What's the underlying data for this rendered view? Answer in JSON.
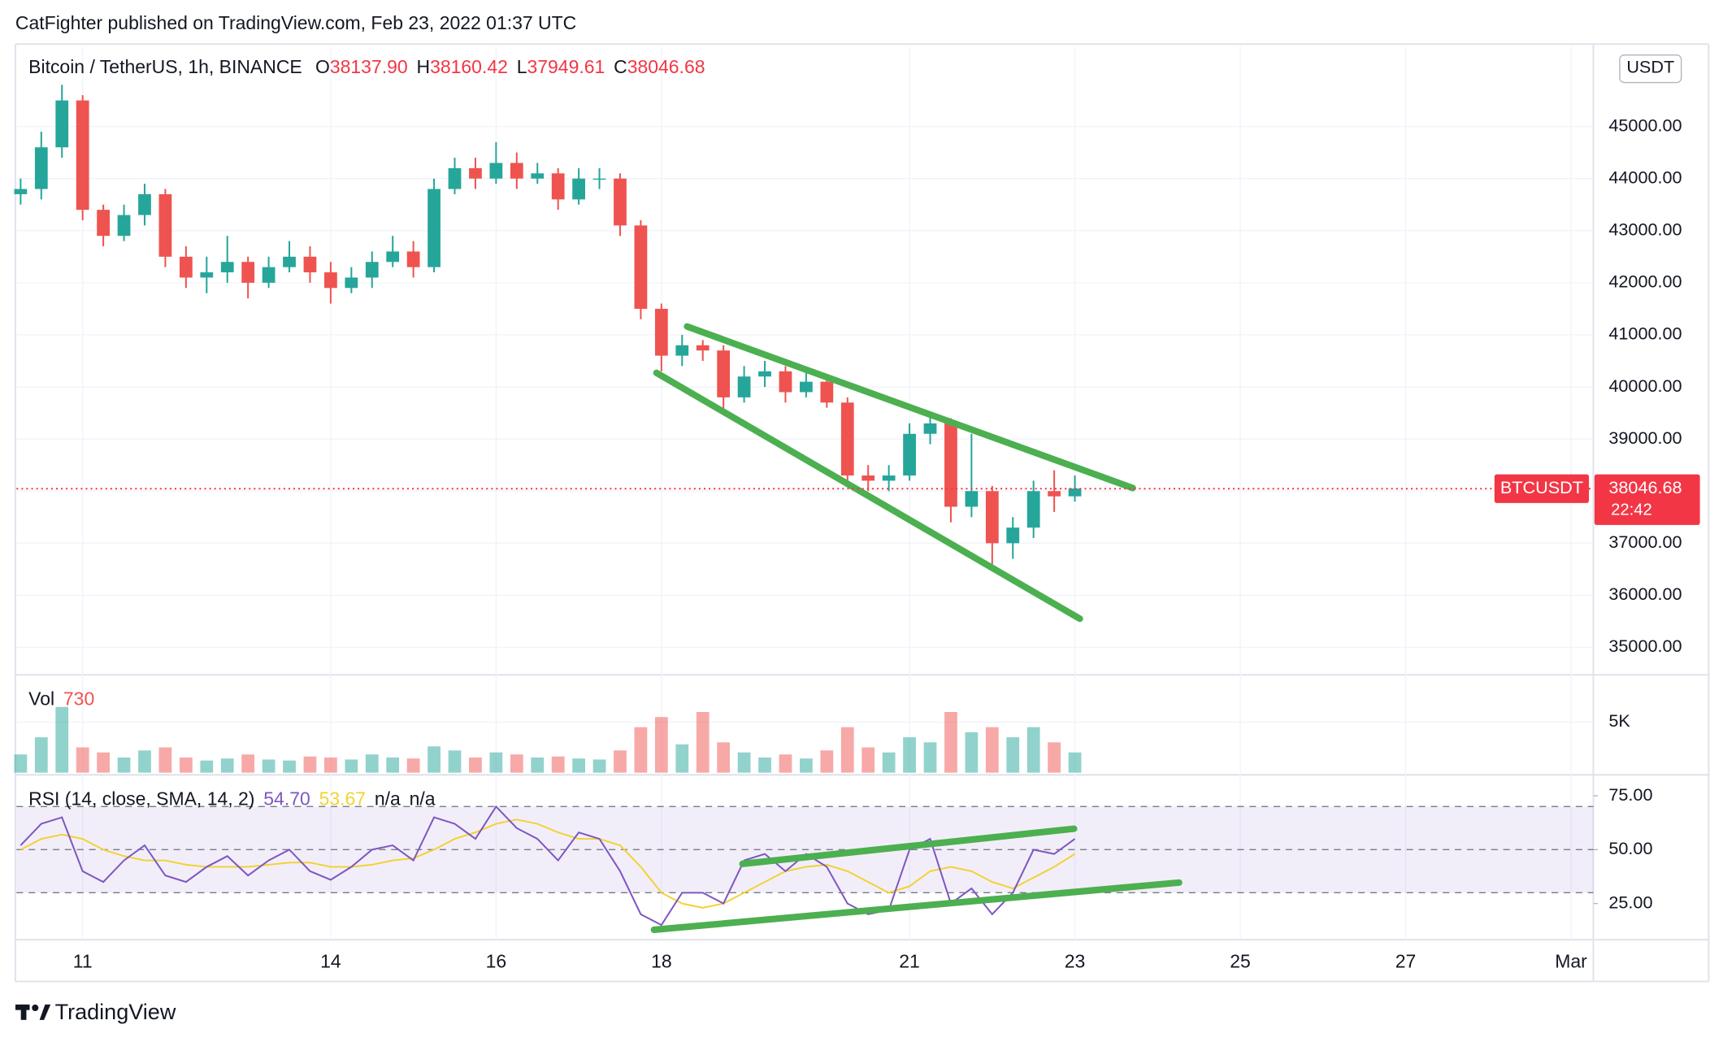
{
  "header": {
    "publisher": "CatFighter published on TradingView.com, Feb 23, 2022 01:37 UTC"
  },
  "chart_data": {
    "type": "candlestick",
    "title": "Bitcoin / TetherUS, 1h, BINANCE",
    "ohlc_labels": [
      {
        "key": "O",
        "value": "38137.90"
      },
      {
        "key": "H",
        "value": "38160.42"
      },
      {
        "key": "L",
        "value": "37949.61"
      },
      {
        "key": "C",
        "value": "38046.68"
      }
    ],
    "currency": "USDT",
    "x": [
      10.25,
      10.5,
      10.75,
      11,
      11.25,
      11.5,
      11.75,
      12,
      12.25,
      12.5,
      12.75,
      13,
      13.25,
      13.5,
      13.75,
      14,
      14.25,
      14.5,
      14.75,
      15,
      15.25,
      15.5,
      15.75,
      16,
      16.25,
      16.5,
      16.75,
      17,
      17.25,
      17.5,
      17.75,
      18,
      18.25,
      18.5,
      18.75,
      19,
      19.25,
      19.5,
      19.75,
      20,
      20.25,
      20.5,
      20.75,
      21,
      21.25,
      21.5,
      21.75,
      22,
      22.25,
      22.5,
      22.75,
      23
    ],
    "open": [
      43700,
      43800,
      44600,
      45500,
      43400,
      42900,
      43300,
      43700,
      42500,
      42100,
      42200,
      42400,
      42000,
      42300,
      42500,
      42200,
      41900,
      42100,
      42400,
      42600,
      42300,
      43800,
      44200,
      44000,
      44300,
      44000,
      44100,
      43600,
      44000,
      44000,
      43100,
      41500,
      40600,
      40800,
      40700,
      39800,
      40200,
      40300,
      39900,
      40100,
      39700,
      38300,
      38200,
      38300,
      39100,
      39300,
      37700,
      38000,
      37000,
      37300,
      38000,
      37900
    ],
    "high": [
      44000,
      44900,
      45800,
      45600,
      43500,
      43500,
      43900,
      43800,
      42700,
      42500,
      42900,
      42500,
      42500,
      42800,
      42700,
      42400,
      42300,
      42600,
      42900,
      42800,
      44000,
      44400,
      44400,
      44700,
      44500,
      44300,
      44200,
      44200,
      44200,
      44100,
      43200,
      41600,
      41000,
      40900,
      40800,
      40400,
      40500,
      40400,
      40300,
      40200,
      39800,
      38500,
      38500,
      39300,
      39500,
      39400,
      39100,
      38100,
      37500,
      38200,
      38400,
      38300
    ],
    "low": [
      43500,
      43600,
      44400,
      43200,
      42700,
      42800,
      43100,
      42300,
      41900,
      41800,
      42000,
      41700,
      41900,
      42200,
      42000,
      41600,
      41800,
      41900,
      42300,
      42100,
      42200,
      43700,
      43800,
      43900,
      43800,
      43900,
      43400,
      43500,
      43800,
      42900,
      41300,
      40300,
      40400,
      40500,
      39500,
      39700,
      40000,
      39700,
      39800,
      39600,
      38100,
      38000,
      38000,
      38200,
      38900,
      37400,
      37500,
      36500,
      36700,
      37100,
      37600,
      37800
    ],
    "close": [
      43800,
      44600,
      45500,
      43400,
      42900,
      43300,
      43700,
      42500,
      42100,
      42200,
      42400,
      42000,
      42300,
      42500,
      42200,
      41900,
      42100,
      42400,
      42600,
      42300,
      43800,
      44200,
      44000,
      44300,
      44000,
      44100,
      43600,
      44000,
      44000,
      43100,
      41500,
      40600,
      40800,
      40700,
      39800,
      40200,
      40300,
      39900,
      40100,
      39700,
      38300,
      38200,
      38300,
      39100,
      39300,
      37700,
      38000,
      37000,
      37300,
      38000,
      37900,
      38050
    ],
    "up_color": "#26a69a",
    "down_color": "#ef5350",
    "xlim": [
      10.2,
      29.27
    ],
    "xticks": [
      11,
      14,
      16,
      18,
      21,
      23,
      25,
      27,
      {
        "value": 29,
        "label": "Mar"
      }
    ],
    "ylim": [
      34515,
      46540
    ],
    "yticks": [
      {
        "value": 35000,
        "label": "35000.00"
      },
      {
        "value": 36000,
        "label": "36000.00"
      },
      {
        "value": 37000,
        "label": "37000.00"
      },
      {
        "value": 38000,
        "label": "38000.00"
      },
      {
        "value": 39000,
        "label": "39000.00"
      },
      {
        "value": 40000,
        "label": "40000.00"
      },
      {
        "value": 41000,
        "label": "41000.00"
      },
      {
        "value": 42000,
        "label": "42000.00"
      },
      {
        "value": 43000,
        "label": "43000.00"
      },
      {
        "value": 44000,
        "label": "44000.00"
      },
      {
        "value": 45000,
        "label": "45000.00"
      }
    ],
    "grid": true,
    "last_price": {
      "symbol": "BTCUSDT",
      "value": 38046.68,
      "countdown": "22:42",
      "color": "#f23645"
    },
    "trendline_color": "#4caf50",
    "trendlines": [
      {
        "x": [
          18.31,
          23.7
        ],
        "y": [
          41160,
          38060
        ]
      },
      {
        "x": [
          17.94,
          23.06
        ],
        "y": [
          40270,
          35550
        ]
      }
    ],
    "volume": {
      "name": "Vol",
      "last": 730,
      "values": [
        1800,
        3500,
        6500,
        2500,
        2000,
        1500,
        2200,
        2500,
        1500,
        1200,
        1400,
        1800,
        1300,
        1200,
        1600,
        1500,
        1300,
        1800,
        1500,
        1400,
        2600,
        2200,
        1500,
        2000,
        1800,
        1500,
        1600,
        1400,
        1300,
        2200,
        4500,
        5500,
        2800,
        6000,
        3000,
        2000,
        1500,
        1800,
        1400,
        2200,
        4500,
        2500,
        2000,
        3500,
        3000,
        6000,
        4000,
        4500,
        3500,
        4500,
        3000,
        2000
      ],
      "ylim": [
        0,
        9240
      ],
      "yticks": [
        {
          "value": 5000,
          "label": "5K"
        }
      ]
    },
    "rsi": {
      "name": "RSI (14, close, SMA, 14, 2)",
      "last": "54.70",
      "sma_last": "53.67",
      "extras": [
        "n/a",
        "n/a"
      ],
      "color": "#7e57c2",
      "sma_color": "#f2d335",
      "values": [
        52,
        62,
        65,
        40,
        35,
        45,
        52,
        38,
        35,
        42,
        47,
        38,
        45,
        50,
        40,
        36,
        42,
        50,
        52,
        45,
        65,
        62,
        55,
        70,
        60,
        55,
        45,
        58,
        55,
        40,
        20,
        15,
        30,
        30,
        25,
        45,
        48,
        40,
        48,
        42,
        25,
        20,
        22,
        50,
        55,
        25,
        32,
        20,
        30,
        50,
        48,
        55
      ],
      "sma": [
        50,
        55,
        57,
        55,
        50,
        47,
        45,
        45,
        43,
        42,
        42,
        42,
        43,
        44,
        44,
        42,
        42,
        43,
        45,
        46,
        50,
        55,
        58,
        62,
        64,
        62,
        58,
        55,
        55,
        52,
        42,
        30,
        25,
        23,
        25,
        30,
        35,
        40,
        42,
        43,
        40,
        35,
        30,
        33,
        40,
        42,
        40,
        35,
        32,
        37,
        42,
        48
      ],
      "ylim": [
        8.2,
        83.7
      ],
      "yticks": [
        {
          "value": 25,
          "label": "25.00"
        },
        {
          "value": 50,
          "label": "50.00"
        },
        {
          "value": 75,
          "label": "75.00"
        }
      ],
      "bands": [
        30,
        50,
        70
      ],
      "trendlines": [
        {
          "x": [
            18.98,
            22.99
          ],
          "y": [
            43.4,
            59.7
          ]
        },
        {
          "x": [
            17.91,
            24.26
          ],
          "y": [
            12.8,
            34.7
          ]
        }
      ]
    }
  },
  "footer": {
    "brand": "TradingView"
  }
}
